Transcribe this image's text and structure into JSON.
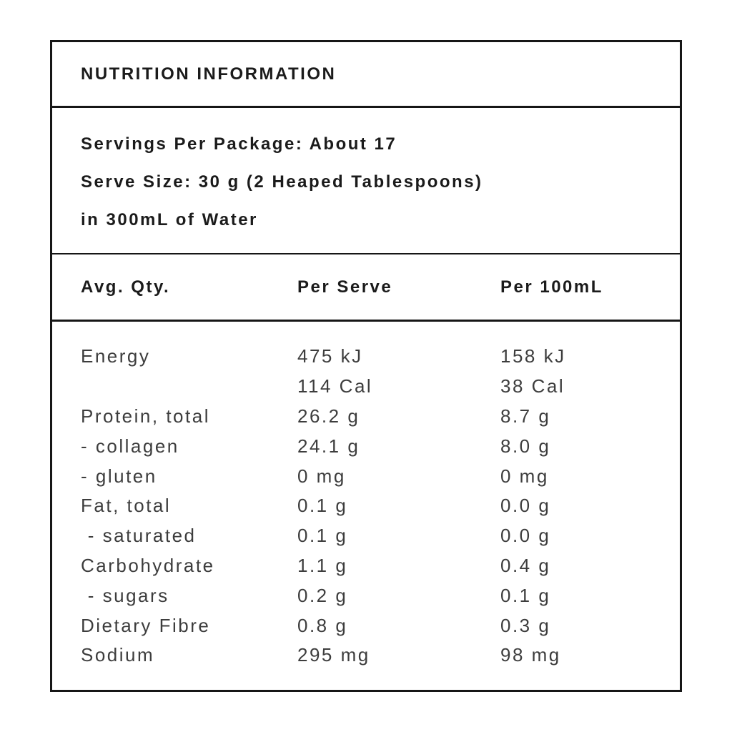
{
  "label": {
    "title": "NUTRITION INFORMATION",
    "serving_info": {
      "servings_per_package": "Servings Per Package: About 17",
      "serve_size": "Serve Size: 30 g (2 Heaped Tablespoons)",
      "water_note": "in 300mL of Water"
    },
    "table": {
      "headers": [
        "Avg. Qty.",
        "Per Serve",
        "Per 100mL"
      ],
      "rows": [
        {
          "label": "Energy",
          "per_serve": "475 kJ",
          "per_100ml": "158 kJ"
        },
        {
          "label": "",
          "per_serve": "114 Cal",
          "per_100ml": "38 Cal"
        },
        {
          "label": "Protein, total",
          "per_serve": "26.2 g",
          "per_100ml": "8.7 g"
        },
        {
          "label": "- collagen",
          "per_serve": "24.1 g",
          "per_100ml": "8.0 g"
        },
        {
          "label": "- gluten",
          "per_serve": "0 mg",
          "per_100ml": "0 mg"
        },
        {
          "label": "Fat, total",
          "per_serve": "0.1 g",
          "per_100ml": "0.0 g"
        },
        {
          "label": " - saturated",
          "per_serve": "0.1 g",
          "per_100ml": "0.0 g"
        },
        {
          "label": "Carbohydrate",
          "per_serve": "1.1 g",
          "per_100ml": "0.4 g"
        },
        {
          "label": " - sugars",
          "per_serve": "0.2 g",
          "per_100ml": "0.1 g"
        },
        {
          "label": "Dietary Fibre",
          "per_serve": "0.8 g",
          "per_100ml": "0.3 g"
        },
        {
          "label": "Sodium",
          "per_serve": "295 mg",
          "per_100ml": "98 mg"
        }
      ]
    },
    "colors": {
      "border": "#161616",
      "heading_text": "#1b1b1b",
      "body_text": "#3d3d3d",
      "background": "#ffffff"
    }
  }
}
